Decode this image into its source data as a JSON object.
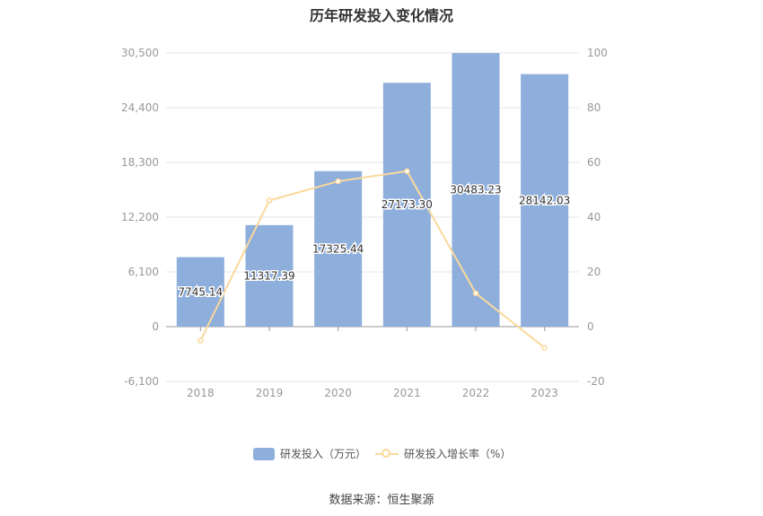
{
  "chart_data": {
    "type": "bar",
    "title": "历年研发投入变化情况",
    "categories": [
      "2018",
      "2019",
      "2020",
      "2021",
      "2022",
      "2023"
    ],
    "series": [
      {
        "name": "研发投入（万元）",
        "type": "bar",
        "axis": "left",
        "values": [
          7745.14,
          11317.39,
          17325.44,
          27173.3,
          30483.23,
          28142.03
        ],
        "labels": [
          "7745.14",
          "11317.39",
          "17325.44",
          "27173.30",
          "30483.23",
          "28142.03"
        ]
      },
      {
        "name": "研发投入增长率（%）",
        "type": "line",
        "axis": "right",
        "values": [
          -5.1,
          46.1,
          53.1,
          56.8,
          12.2,
          -7.7
        ]
      }
    ],
    "y_left": {
      "min": -6100,
      "max": 30500,
      "ticks": [
        "-6,100",
        "0",
        "6,100",
        "12,200",
        "18,300",
        "24,400",
        "30,500"
      ]
    },
    "y_right": {
      "min": -20,
      "max": 100,
      "ticks": [
        "-20",
        "0",
        "20",
        "40",
        "60",
        "80",
        "100"
      ]
    },
    "grid": true,
    "legend_position": "bottom",
    "colors": {
      "bar": "#8eaedc",
      "line": "#fad99c",
      "grid": "#e5e5e5",
      "axis_text": "#999999"
    }
  },
  "source_text": "数据来源：恒生聚源"
}
